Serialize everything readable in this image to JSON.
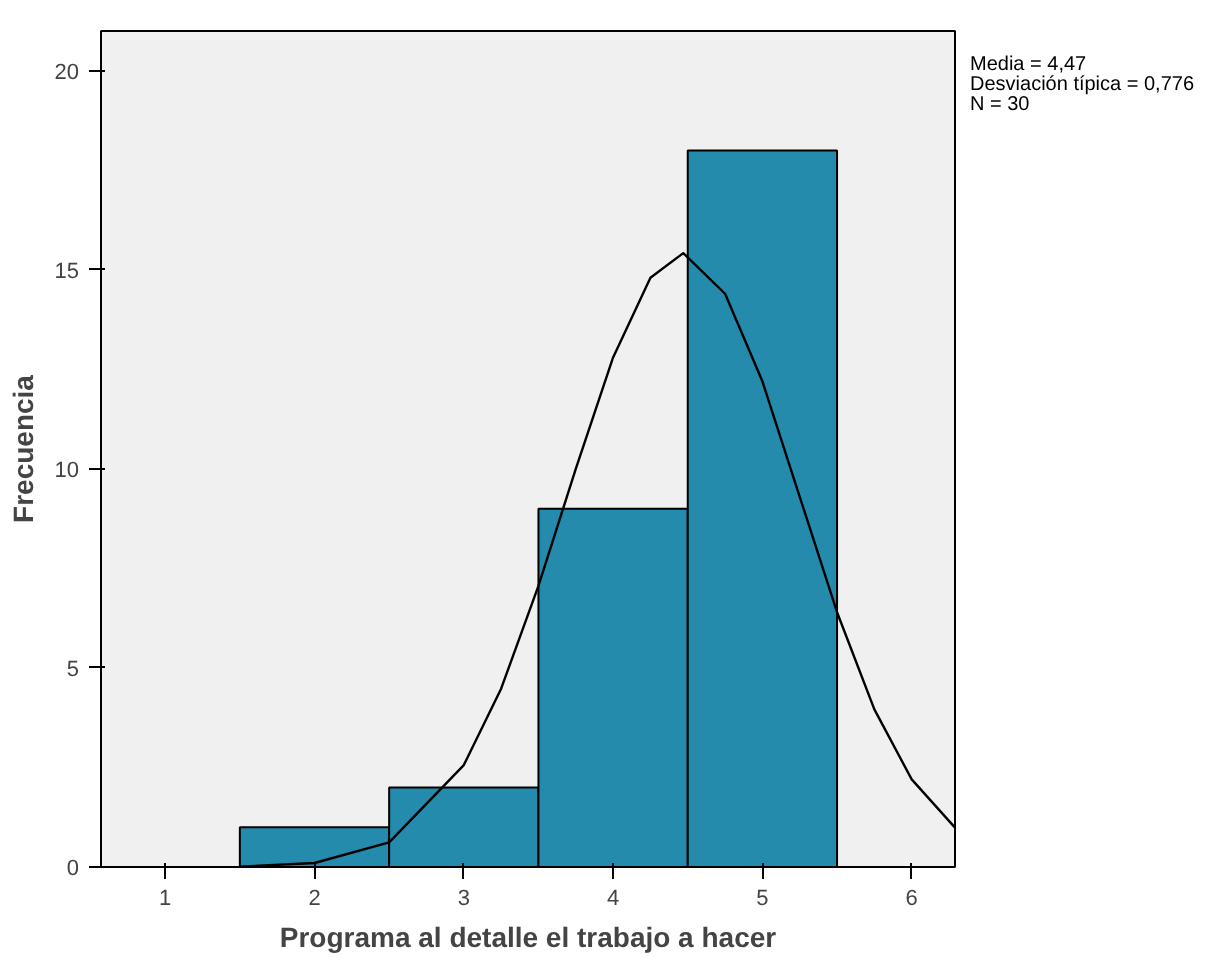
{
  "chart_data": {
    "type": "histogram",
    "xlabel": "Programa al detalle el trabajo a hacer",
    "ylabel": "Frecuencia",
    "annotations": [
      "Media = 4,47",
      "Desviación típica = 0,776",
      "N = 30"
    ],
    "series": [
      {
        "color": "#248bac",
        "bins": [
          1.5,
          2.5,
          3.5,
          4.5,
          5.5
        ],
        "values": [
          1,
          2,
          9,
          18
        ]
      },
      {
        "type": "line",
        "color": "#000000",
        "x": [
          1.5,
          2.0,
          2.5,
          3.0,
          3.25,
          3.5,
          3.75,
          4.0,
          4.25,
          4.47,
          4.75,
          5.0,
          5.25,
          5.5,
          5.75,
          6.0,
          6.29
        ],
        "values": [
          0.01,
          0.1,
          0.62,
          2.56,
          4.48,
          7.06,
          10.0,
          12.8,
          14.8,
          15.42,
          14.4,
          12.2,
          9.3,
          6.4,
          3.96,
          2.2,
          0.99
        ]
      }
    ],
    "xlim": [
      0.57,
      6.29
    ],
    "ylim": [
      0,
      21
    ],
    "xticks": [
      1,
      2,
      3,
      4,
      5,
      6
    ],
    "yticks": [
      0,
      5,
      10,
      15,
      20
    ],
    "grid": false
  }
}
